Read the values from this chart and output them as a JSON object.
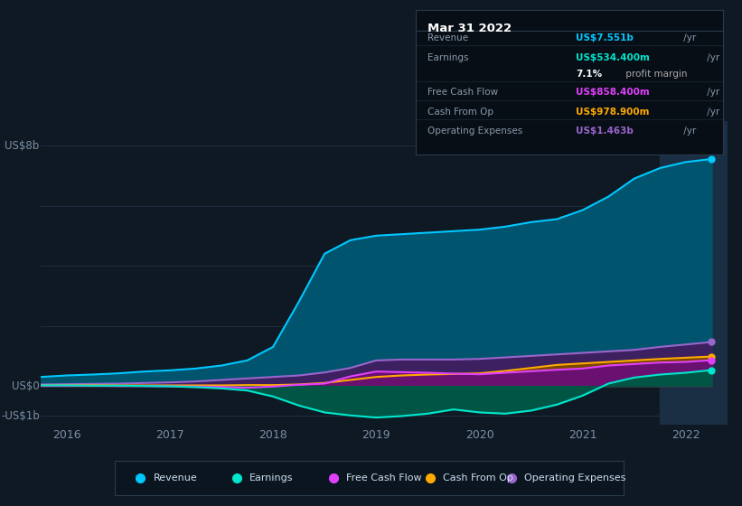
{
  "bg_color": "#0f1923",
  "plot_bg_color": "#0f1923",
  "grid_color": "#1e2e40",
  "axis_label_color": "#7a8fa6",
  "years": [
    2015.75,
    2016.0,
    2016.25,
    2016.5,
    2016.75,
    2017.0,
    2017.25,
    2017.5,
    2017.75,
    2018.0,
    2018.25,
    2018.5,
    2018.75,
    2019.0,
    2019.25,
    2019.5,
    2019.75,
    2020.0,
    2020.25,
    2020.5,
    2020.75,
    2021.0,
    2021.25,
    2021.5,
    2021.75,
    2022.0,
    2022.25
  ],
  "revenue": [
    0.3,
    0.35,
    0.38,
    0.42,
    0.48,
    0.52,
    0.58,
    0.68,
    0.85,
    1.3,
    2.8,
    4.4,
    4.85,
    5.0,
    5.05,
    5.1,
    5.15,
    5.2,
    5.3,
    5.45,
    5.55,
    5.85,
    6.3,
    6.9,
    7.25,
    7.45,
    7.55
  ],
  "earnings": [
    0.02,
    0.02,
    0.01,
    0.01,
    0.0,
    -0.01,
    -0.04,
    -0.08,
    -0.15,
    -0.35,
    -0.65,
    -0.88,
    -0.98,
    -1.05,
    -1.0,
    -0.92,
    -0.78,
    -0.88,
    -0.92,
    -0.82,
    -0.62,
    -0.32,
    0.08,
    0.28,
    0.38,
    0.44,
    0.53
  ],
  "free_cash_flow": [
    0.01,
    0.01,
    0.01,
    0.0,
    0.0,
    -0.01,
    -0.02,
    -0.03,
    -0.06,
    -0.02,
    0.04,
    0.08,
    0.32,
    0.48,
    0.46,
    0.44,
    0.41,
    0.39,
    0.44,
    0.49,
    0.54,
    0.58,
    0.68,
    0.73,
    0.78,
    0.8,
    0.858
  ],
  "cash_from_op": [
    0.02,
    0.03,
    0.03,
    0.02,
    0.02,
    0.02,
    0.02,
    0.02,
    0.03,
    0.03,
    0.05,
    0.1,
    0.2,
    0.3,
    0.35,
    0.38,
    0.4,
    0.42,
    0.5,
    0.6,
    0.7,
    0.75,
    0.8,
    0.85,
    0.9,
    0.94,
    0.979
  ],
  "operating_expenses": [
    0.05,
    0.06,
    0.07,
    0.08,
    0.1,
    0.12,
    0.15,
    0.2,
    0.25,
    0.3,
    0.35,
    0.45,
    0.6,
    0.85,
    0.88,
    0.88,
    0.88,
    0.9,
    0.95,
    1.0,
    1.05,
    1.1,
    1.15,
    1.2,
    1.3,
    1.38,
    1.463
  ],
  "revenue_line_color": "#00c8ff",
  "revenue_fill_color": "#00546e",
  "earnings_line_color": "#00e5cc",
  "earnings_fill_color": "#005544",
  "fcf_line_color": "#e040fb",
  "fcf_fill_color": "#6a1070",
  "cfo_line_color": "#ffaa00",
  "cfo_fill_color": "#7a4500",
  "opex_line_color": "#9966cc",
  "opex_fill_color": "#3d2060",
  "shaded_start": 2021.75,
  "shaded_color": "#1a2e44",
  "ylim": [
    -1.3,
    8.8
  ],
  "xlim": [
    2015.75,
    2022.4
  ],
  "xticks": [
    2016,
    2017,
    2018,
    2019,
    2020,
    2021,
    2022
  ],
  "ytick_positions": [
    -1,
    0,
    8
  ],
  "ytick_labels": [
    "-US$1b",
    "US$0",
    "US$8b"
  ],
  "info_box_bg": "#080e16",
  "info_box_border": "#2a3a4a",
  "legend_bg": "#0a1520",
  "legend_border": "#2a3a4a",
  "info_title": "Mar 31 2022",
  "info_rows": [
    {
      "label": "Revenue",
      "value": "US$7.551b",
      "suffix": " /yr",
      "value_color": "#00c8ff"
    },
    {
      "label": "Earnings",
      "value": "US$534.400m",
      "suffix": " /yr",
      "value_color": "#00e5cc"
    },
    {
      "label": "",
      "value": "7.1%",
      "suffix": " profit margin",
      "value_color": "#ffffff",
      "suffix_color": "#aaaaaa"
    },
    {
      "label": "Free Cash Flow",
      "value": "US$858.400m",
      "suffix": " /yr",
      "value_color": "#e040fb"
    },
    {
      "label": "Cash From Op",
      "value": "US$978.900m",
      "suffix": " /yr",
      "value_color": "#ffaa00"
    },
    {
      "label": "Operating Expenses",
      "value": "US$1.463b",
      "suffix": " /yr",
      "value_color": "#9966cc"
    }
  ],
  "legend_items": [
    {
      "label": "Revenue",
      "color": "#00c8ff"
    },
    {
      "label": "Earnings",
      "color": "#00e5cc"
    },
    {
      "label": "Free Cash Flow",
      "color": "#e040fb"
    },
    {
      "label": "Cash From Op",
      "color": "#ffaa00"
    },
    {
      "label": "Operating Expenses",
      "color": "#9966cc"
    }
  ]
}
